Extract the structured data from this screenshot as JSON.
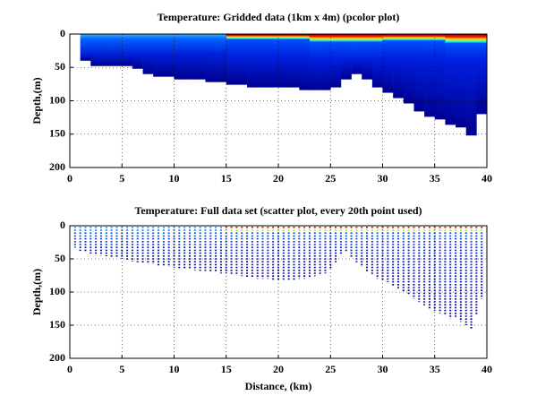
{
  "chart_data": [
    {
      "type": "pcolor",
      "title": "Temperature: Gridded data (1km x 4m) (pcolor plot)",
      "ylabel": "Depth,(m)",
      "bins": [
        1,
        2,
        3,
        4,
        5,
        6,
        7,
        8,
        9,
        10,
        11,
        12,
        13,
        14,
        15,
        16,
        17,
        18,
        19,
        20,
        21,
        22,
        23,
        24,
        25,
        26,
        27,
        28,
        29,
        30,
        31,
        32,
        33,
        34,
        35,
        36,
        37,
        38,
        39,
        40
      ],
      "bottom": [
        40,
        48,
        48,
        48,
        48,
        52,
        60,
        64,
        64,
        68,
        68,
        68,
        72,
        72,
        76,
        76,
        80,
        80,
        80,
        80,
        80,
        84,
        84,
        84,
        80,
        68,
        60,
        68,
        80,
        88,
        96,
        104,
        116,
        124,
        128,
        136,
        140,
        152,
        120
      ],
      "warm_layer": [
        0,
        0,
        0,
        0,
        0,
        0,
        0,
        0,
        0,
        0,
        0,
        0,
        0,
        0,
        8,
        8,
        8,
        8,
        8,
        8,
        8,
        8,
        12,
        12,
        12,
        12,
        12,
        12,
        12,
        10,
        10,
        10,
        10,
        10,
        10,
        14,
        14,
        14,
        14
      ],
      "xlim": [
        0,
        40
      ],
      "ylim": [
        0,
        200
      ],
      "y_reversed": true,
      "xticks": [
        0,
        5,
        10,
        15,
        20,
        25,
        30,
        35,
        40
      ],
      "yticks": [
        0,
        50,
        100,
        150,
        200
      ],
      "grid": true
    },
    {
      "type": "scatter",
      "title": "Temperature: Full data set (scatter plot, every 20th point used)",
      "ylabel": "Depth,(m)",
      "xlabel": "Distance, (km)",
      "x": [
        0.5,
        1,
        1.5,
        2,
        2.5,
        3,
        3.5,
        4,
        4.5,
        5,
        5.5,
        6,
        6.5,
        7,
        7.5,
        8,
        8.5,
        9,
        9.5,
        10,
        10.5,
        11,
        11.5,
        12,
        12.5,
        13,
        13.5,
        14,
        14.5,
        15,
        15.5,
        16,
        16.5,
        17,
        17.5,
        18,
        18.5,
        19,
        19.5,
        20,
        20.5,
        21,
        21.5,
        22,
        22.5,
        23,
        23.5,
        24,
        24.5,
        25,
        25.5,
        26,
        26.5,
        27,
        27.5,
        28,
        28.5,
        29,
        29.5,
        30,
        30.5,
        31,
        31.5,
        32,
        32.5,
        33,
        33.5,
        34,
        34.5,
        35,
        35.5,
        36,
        36.5,
        37,
        37.5,
        38,
        38.5,
        39,
        39.5
      ],
      "values": [
        33,
        38,
        40,
        42,
        44,
        45,
        46,
        47,
        48,
        50,
        52,
        54,
        55,
        57,
        58,
        58,
        60,
        60,
        62,
        63,
        64,
        65,
        66,
        67,
        68,
        68,
        70,
        70,
        72,
        72,
        74,
        75,
        76,
        78,
        78,
        80,
        80,
        80,
        82,
        82,
        82,
        82,
        82,
        80,
        80,
        78,
        76,
        75,
        72,
        65,
        55,
        42,
        40,
        48,
        55,
        62,
        70,
        75,
        80,
        82,
        85,
        90,
        95,
        100,
        105,
        110,
        115,
        120,
        125,
        128,
        132,
        135,
        140,
        138,
        145,
        150,
        155,
        135,
        110
      ],
      "warm_layer": [
        0,
        0,
        0,
        0,
        0,
        0,
        0,
        0,
        0,
        0,
        0,
        0,
        0,
        0,
        0,
        0,
        0,
        0,
        0,
        0,
        0,
        0,
        0,
        0,
        0,
        0,
        0,
        0,
        0,
        10,
        10,
        10,
        10,
        10,
        10,
        10,
        10,
        10,
        10,
        10,
        10,
        10,
        10,
        10,
        10,
        10,
        10,
        10,
        10,
        10,
        10,
        10,
        10,
        10,
        10,
        10,
        10,
        10,
        10,
        10,
        10,
        10,
        10,
        10,
        10,
        10,
        10,
        10,
        10,
        10,
        10,
        10,
        10,
        10,
        10,
        10,
        10,
        10,
        10
      ],
      "xlim": [
        0,
        40
      ],
      "ylim": [
        0,
        200
      ],
      "y_reversed": true,
      "xticks": [
        0,
        5,
        10,
        15,
        20,
        25,
        30,
        35,
        40
      ],
      "yticks": [
        0,
        50,
        100,
        150,
        200
      ],
      "grid": true
    }
  ]
}
